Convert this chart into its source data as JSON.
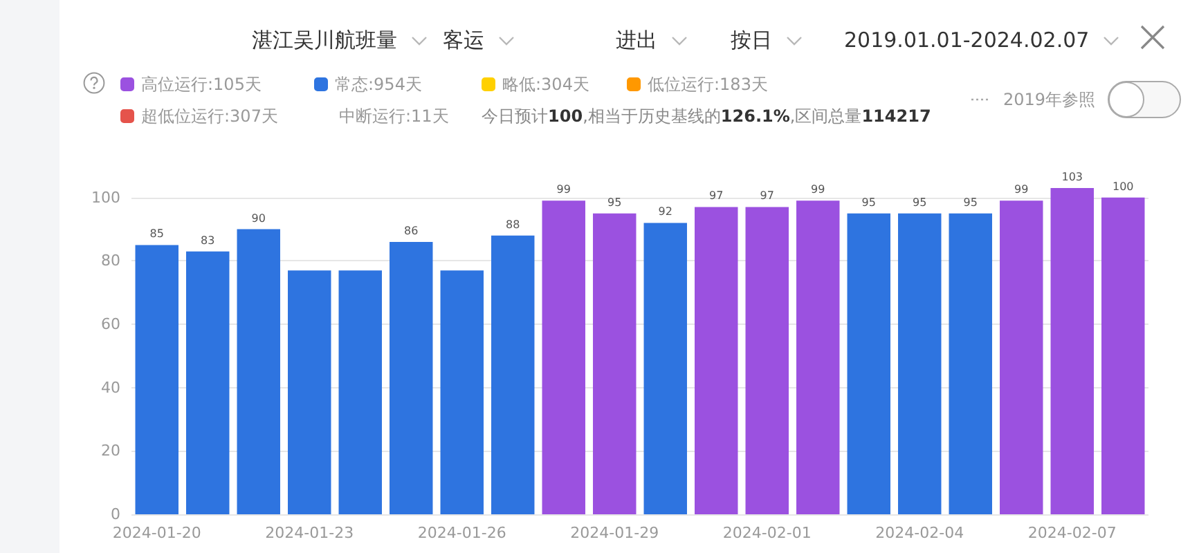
{
  "chart_data": {
    "type": "bar",
    "title": "湛江吴川航班量",
    "annotations": [
      "客运",
      "进出",
      "按日",
      "2019.01.01-2024.02.07",
      "中断运行:11天",
      "今日预计100,相当于历史基线的126.1%,区间总量114217",
      "2019年参照"
    ],
    "categories": [
      "2024-01-20",
      null,
      null,
      "2024-01-23",
      null,
      null,
      "2024-01-26",
      null,
      null,
      "2024-01-29",
      null,
      null,
      "2024-02-01",
      null,
      null,
      "2024-02-04",
      null,
      null,
      "2024-02-07",
      null
    ],
    "series": [
      {
        "name": "高位运行:105天",
        "color": "#9b51e0",
        "values": [
          null,
          null,
          null,
          null,
          null,
          null,
          null,
          null,
          99,
          95,
          null,
          97,
          97,
          99,
          null,
          null,
          null,
          99,
          103,
          100
        ],
        "value_labels": [
          null,
          null,
          null,
          null,
          null,
          null,
          null,
          null,
          "99",
          "95",
          null,
          "97",
          "97",
          "99",
          null,
          null,
          null,
          "99",
          "103",
          "100"
        ]
      },
      {
        "name": "常态:954天",
        "color": "#2e74e0",
        "values": [
          85,
          83,
          90,
          77,
          77,
          86,
          77,
          88,
          null,
          null,
          92,
          null,
          null,
          null,
          95,
          95,
          95,
          null,
          null,
          null
        ],
        "value_labels": [
          "85",
          "83",
          "90",
          null,
          null,
          "86",
          null,
          "88",
          null,
          null,
          "92",
          null,
          null,
          null,
          "95",
          "95",
          "95",
          null,
          null,
          null
        ]
      },
      {
        "name": "略低:304天",
        "color": "#ffd000",
        "values": [
          null,
          null,
          null,
          null,
          null,
          null,
          null,
          null,
          null,
          null,
          null,
          null,
          null,
          null,
          null,
          null,
          null,
          null,
          null,
          null
        ]
      },
      {
        "name": "低位运行:183天",
        "color": "#ff9800",
        "values": [
          null,
          null,
          null,
          null,
          null,
          null,
          null,
          null,
          null,
          null,
          null,
          null,
          null,
          null,
          null,
          null,
          null,
          null,
          null,
          null
        ]
      },
      {
        "name": "超低位运行:307天",
        "color": "#e5534b",
        "values": [
          null,
          null,
          null,
          null,
          null,
          null,
          null,
          null,
          null,
          null,
          null,
          null,
          null,
          null,
          null,
          null,
          null,
          null,
          null,
          null
        ]
      }
    ],
    "stacked": true,
    "ylim": [
      0,
      103
    ],
    "yticks": [
      0,
      20,
      40,
      60,
      80,
      100
    ],
    "grid": "y",
    "legend": "top left"
  }
}
